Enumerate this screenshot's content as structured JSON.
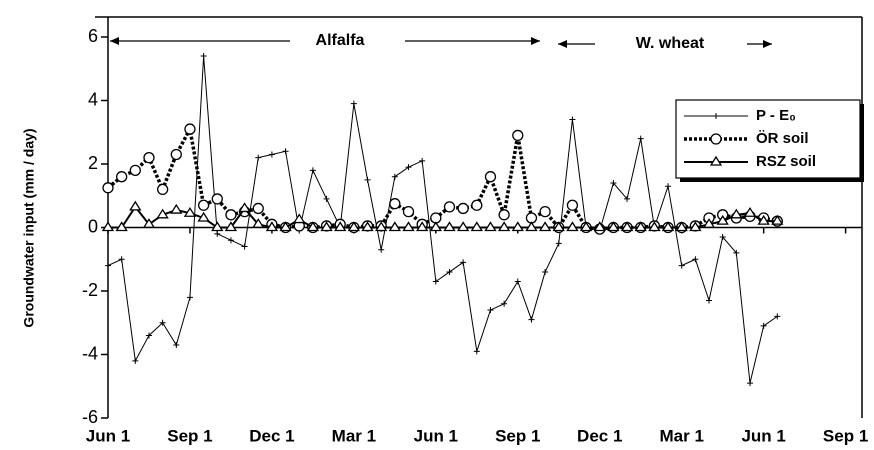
{
  "chart_data": {
    "type": "line",
    "y_label": "Groundwater input (mm / day)",
    "annotations": [
      "Alfalfa",
      "W. wheat"
    ],
    "xlim": [
      0,
      27.6
    ],
    "xticks": [
      {
        "value": 0,
        "label": "Jun 1"
      },
      {
        "value": 3,
        "label": "Sep 1"
      },
      {
        "value": 6,
        "label": "Dec 1"
      },
      {
        "value": 9,
        "label": "Mar 1"
      },
      {
        "value": 12,
        "label": "Jun 1"
      },
      {
        "value": 15,
        "label": "Sep 1"
      },
      {
        "value": 18,
        "label": "Dec 1"
      },
      {
        "value": 21,
        "label": "Mar 1"
      },
      {
        "value": 24,
        "label": "Jun 1"
      },
      {
        "value": 27,
        "label": "Sep 1"
      }
    ],
    "ylim": [
      -6,
      6
    ],
    "yticks": [
      -6,
      -4,
      -2,
      0,
      2,
      4,
      6
    ],
    "legend": "upper right",
    "x": [
      0,
      0.5,
      1,
      1.5,
      2,
      2.5,
      3,
      3.5,
      4,
      4.5,
      5,
      5.5,
      6,
      6.5,
      7,
      7.5,
      8,
      8.5,
      9,
      9.5,
      10,
      10.5,
      11,
      11.5,
      12,
      12.5,
      13,
      13.5,
      14,
      14.5,
      15,
      15.5,
      16,
      16.5,
      17,
      17.5,
      18,
      18.5,
      19,
      19.5,
      20,
      20.5,
      21,
      21.5,
      22,
      22.5,
      23,
      23.5,
      24,
      24.5
    ],
    "series": [
      {
        "name": "P - E₀",
        "color": "#000000",
        "marker": "plus",
        "dashed": false,
        "width": 1,
        "values": [
          -1.2,
          -1.0,
          -4.2,
          -3.4,
          -3.0,
          -3.7,
          -2.2,
          5.4,
          -0.2,
          -0.4,
          -0.6,
          2.2,
          2.3,
          2.4,
          -0.1,
          1.8,
          0.9,
          0.0,
          3.9,
          1.5,
          -0.7,
          1.6,
          1.9,
          2.1,
          -1.7,
          -1.4,
          -1.1,
          -3.9,
          -2.6,
          -2.4,
          -1.7,
          -2.9,
          -1.4,
          -0.5,
          3.4,
          0.0,
          -0.1,
          1.4,
          0.9,
          2.8,
          0.0,
          1.3,
          -1.2,
          -1.0,
          -2.3,
          -0.3,
          -0.8,
          -4.9,
          -3.1,
          -2.8
        ]
      },
      {
        "name": "ÖR soil",
        "color": "#000000",
        "marker": "circle",
        "dashed": true,
        "width": 3.5,
        "values": [
          1.25,
          1.6,
          1.8,
          2.2,
          1.2,
          2.3,
          3.1,
          0.7,
          0.9,
          0.4,
          0.5,
          0.6,
          0.1,
          0.0,
          0.05,
          0.0,
          0.05,
          0.1,
          0.0,
          0.05,
          0.05,
          0.75,
          0.5,
          0.1,
          0.3,
          0.65,
          0.6,
          0.7,
          1.6,
          0.4,
          2.9,
          0.3,
          0.5,
          0.0,
          0.7,
          0.0,
          -0.05,
          0.0,
          0.0,
          0.0,
          0.05,
          0.0,
          0.0,
          0.05,
          0.3,
          0.4,
          0.3,
          0.35,
          0.3,
          0.2
        ]
      },
      {
        "name": "RSZ soil",
        "color": "#000000",
        "marker": "triangle",
        "dashed": false,
        "width": 2,
        "values": [
          0,
          0,
          0.65,
          0.1,
          0.4,
          0.55,
          0.45,
          0.3,
          0,
          0,
          0.6,
          0.1,
          0,
          0,
          0.25,
          0,
          0,
          0,
          0,
          0,
          0,
          0,
          0,
          0,
          0,
          0,
          0,
          0,
          0,
          0,
          0,
          0,
          0,
          0,
          0,
          0,
          0,
          0,
          0,
          0,
          0,
          0,
          0,
          0,
          0.1,
          0.2,
          0.4,
          0.45,
          0.2,
          0.2
        ]
      }
    ]
  }
}
